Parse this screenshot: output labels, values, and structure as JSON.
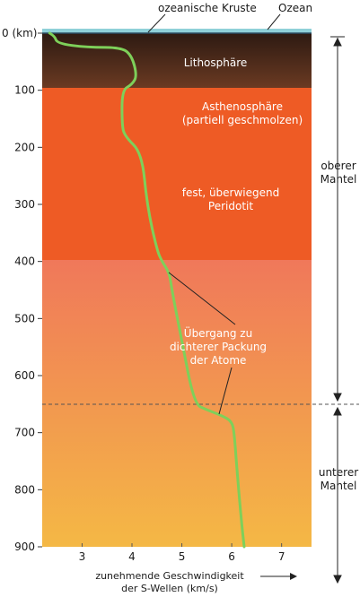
{
  "labels": {
    "ocean_crust": "ozeanische Kruste",
    "ocean": "Ozean",
    "lithosphere": "Lithosphäre",
    "astheno_1": "Asthenosphäre",
    "astheno_2": "(partiell geschmolzen)",
    "peridotit_1": "fest, überwiegend",
    "peridotit_2": "Peridotit",
    "transition_1": "Übergang zu",
    "transition_2": "dichterer Packung",
    "transition_3": "der Atome",
    "upper_mantle_1": "oberer",
    "upper_mantle_2": "Mantel",
    "lower_mantle_1": "unterer",
    "lower_mantle_2": "Mantel",
    "x_axis_1": "zunehmende Geschwindigkeit",
    "x_axis_2": "der S-Wellen (km/s)"
  },
  "depth_ticks": [
    "0 (km)",
    "100",
    "200",
    "300",
    "400",
    "500",
    "600",
    "700",
    "800",
    "900"
  ],
  "velocity_ticks": [
    "3",
    "4",
    "5",
    "6",
    "7"
  ],
  "colors": {
    "ocean": "#8fd0d8",
    "lithosphere_top": "#2d1a12",
    "lithosphere_bottom": "#6b3a22",
    "asthenosphere": "#ee5b25",
    "transition_top": "#f0785a",
    "lower_mantle_bottom": "#f4b845",
    "curve": "#7ed05a"
  },
  "chart_data": {
    "type": "line",
    "xlabel": "zunehmende Geschwindigkeit der S-Wellen (km/s)",
    "ylabel": "",
    "y_unit": "km",
    "xlim": [
      2.2,
      7.6
    ],
    "ylim": [
      0,
      900
    ],
    "y_inverted": true,
    "series": [
      {
        "x": [
          2.35,
          2.45,
          2.5,
          3.1,
          3.8,
          4.0,
          4.1,
          4.0,
          3.8,
          3.8,
          3.85,
          4.2,
          4.3,
          4.5,
          4.6,
          4.75,
          4.8,
          5.0,
          5.25,
          5.5,
          5.8,
          6.0,
          6.05,
          6.1,
          6.2,
          6.25
        ],
        "y": [
          0,
          5,
          18,
          25,
          25,
          40,
          75,
          90,
          100,
          160,
          180,
          210,
          300,
          380,
          400,
          420,
          450,
          540,
          650,
          660,
          670,
          680,
          700,
          760,
          860,
          900
        ]
      }
    ],
    "layers": [
      {
        "name": "Lithosphäre",
        "from_km": 0,
        "to_km": 100
      },
      {
        "name": "Asthenosphäre",
        "from_km": 100,
        "to_km": 400
      },
      {
        "name": "Übergang",
        "from_km": 400,
        "to_km": 660
      },
      {
        "name": "unterer Mantel",
        "from_km": 660,
        "to_km": 900
      }
    ],
    "boundary_dashed_km": 650
  }
}
